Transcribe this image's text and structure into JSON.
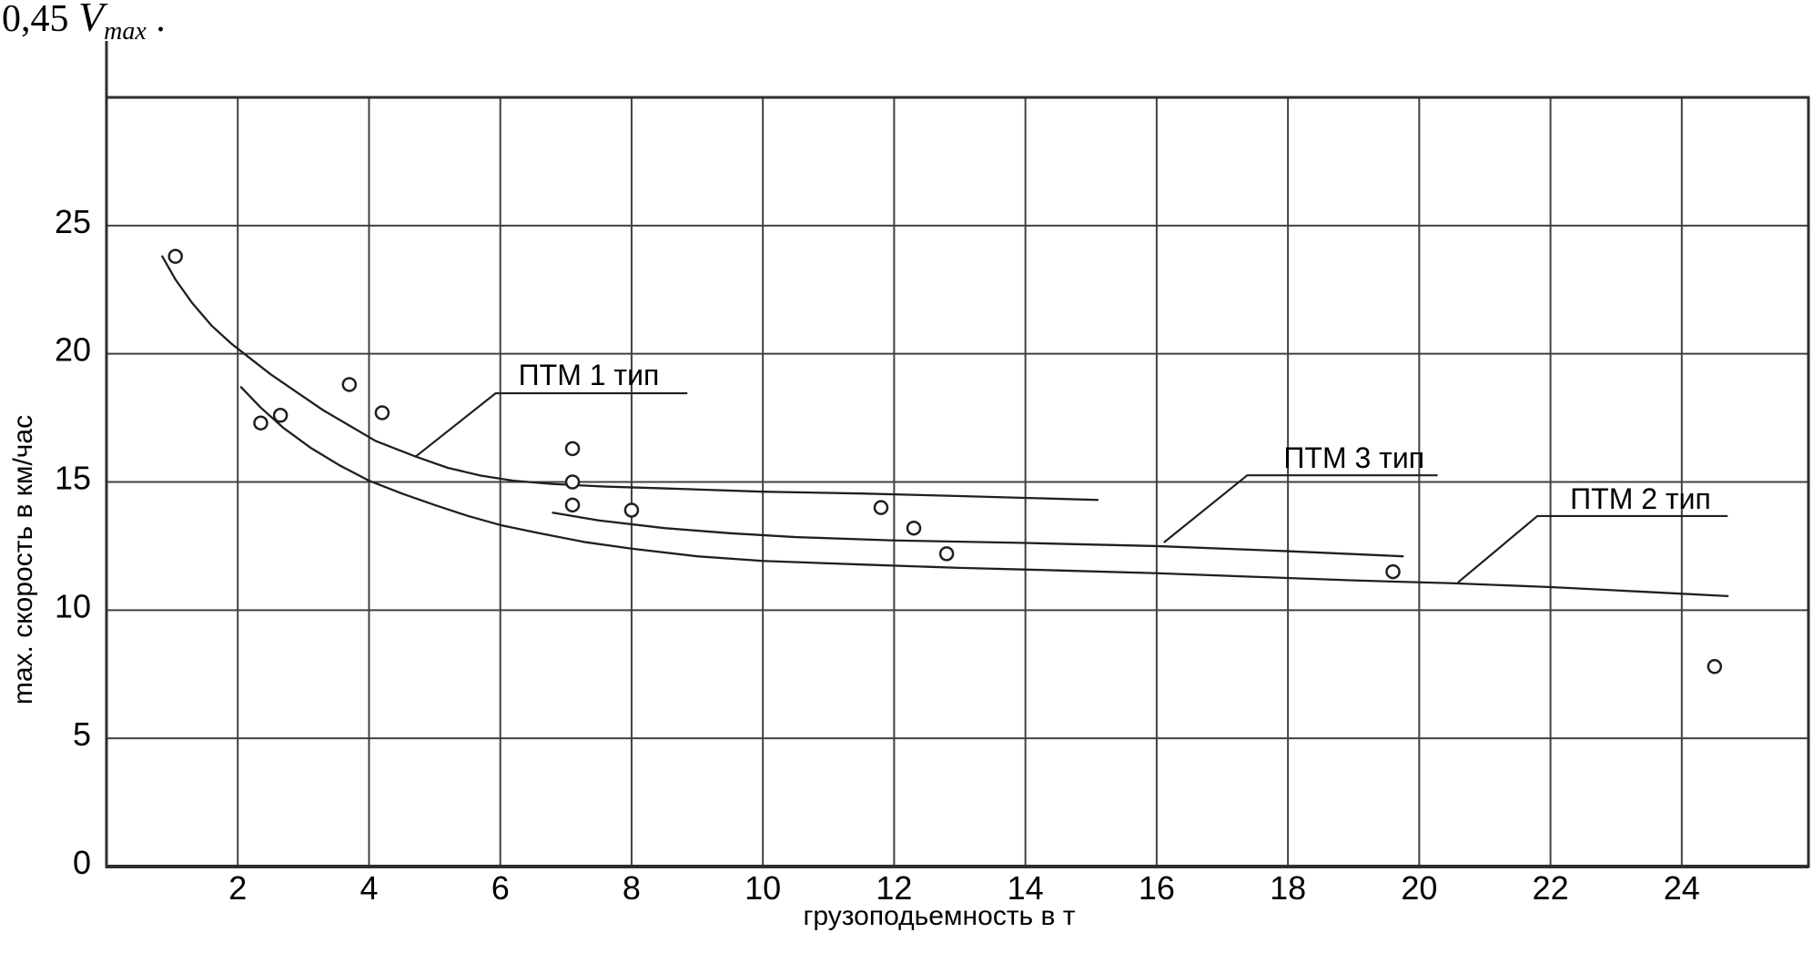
{
  "formula": {
    "prefix": "0,45 ",
    "variable": "V",
    "subscript": "max",
    "suffix": " ."
  },
  "colors": {
    "background": "#ffffff",
    "grid": "#404040",
    "axis": "#2e2e2e",
    "curve": "#1f1f1f",
    "marker": "#1f1f1f",
    "text": "#000000"
  },
  "chart_data": {
    "type": "line",
    "title": "",
    "xlabel": "грузоподьемность в т",
    "ylabel": "max. скорость в км/час",
    "xlim": [
      0,
      25.93
    ],
    "ylim": [
      0,
      30
    ],
    "x_ticks": [
      2,
      4,
      6,
      8,
      10,
      12,
      14,
      16,
      18,
      20,
      22,
      24
    ],
    "y_ticks": [
      0,
      5,
      10,
      15,
      20,
      25
    ],
    "grid": true,
    "legend_position": "inline-annotations",
    "series": [
      {
        "name": "ПТМ 1 тип",
        "points": [
          [
            0.85,
            23.8
          ],
          [
            1.05,
            22.9
          ],
          [
            1.3,
            22.0
          ],
          [
            1.6,
            21.1
          ],
          [
            1.9,
            20.4
          ],
          [
            2.1,
            20.0
          ],
          [
            2.5,
            19.2
          ],
          [
            2.9,
            18.5
          ],
          [
            3.3,
            17.8
          ],
          [
            3.7,
            17.2
          ],
          [
            4.1,
            16.6
          ],
          [
            4.7,
            16.0
          ],
          [
            5.2,
            15.55
          ],
          [
            5.7,
            15.25
          ],
          [
            6.2,
            15.05
          ],
          [
            6.8,
            14.92
          ],
          [
            7.6,
            14.82
          ],
          [
            8.5,
            14.75
          ],
          [
            10.0,
            14.62
          ],
          [
            11.5,
            14.55
          ],
          [
            13.0,
            14.45
          ],
          [
            15.1,
            14.3
          ]
        ]
      },
      {
        "name": "ПТМ 2 тип",
        "points": [
          [
            2.05,
            18.7
          ],
          [
            2.35,
            17.9
          ],
          [
            2.7,
            17.1
          ],
          [
            3.1,
            16.35
          ],
          [
            3.55,
            15.65
          ],
          [
            4.0,
            15.05
          ],
          [
            4.5,
            14.55
          ],
          [
            5.0,
            14.1
          ],
          [
            5.5,
            13.68
          ],
          [
            6.0,
            13.32
          ],
          [
            6.6,
            13.0
          ],
          [
            7.3,
            12.65
          ],
          [
            8.0,
            12.4
          ],
          [
            9.0,
            12.1
          ],
          [
            10.0,
            11.92
          ],
          [
            11.5,
            11.78
          ],
          [
            13.0,
            11.65
          ],
          [
            14.5,
            11.55
          ],
          [
            16.0,
            11.44
          ],
          [
            17.5,
            11.3
          ],
          [
            19.0,
            11.16
          ],
          [
            20.5,
            11.05
          ],
          [
            22.0,
            10.9
          ],
          [
            23.4,
            10.72
          ],
          [
            24.7,
            10.55
          ]
        ]
      },
      {
        "name": "ПТМ 3 тип",
        "points": [
          [
            6.8,
            13.8
          ],
          [
            7.5,
            13.5
          ],
          [
            8.5,
            13.2
          ],
          [
            9.5,
            13.0
          ],
          [
            10.5,
            12.85
          ],
          [
            12.0,
            12.72
          ],
          [
            14.0,
            12.62
          ],
          [
            16.0,
            12.5
          ],
          [
            18.0,
            12.3
          ],
          [
            19.75,
            12.1
          ]
        ]
      }
    ],
    "scatter_points": [
      [
        1.05,
        23.8
      ],
      [
        2.35,
        17.3
      ],
      [
        2.65,
        17.6
      ],
      [
        3.7,
        18.8
      ],
      [
        4.2,
        17.7
      ],
      [
        7.1,
        16.3
      ],
      [
        7.1,
        15.0
      ],
      [
        7.1,
        14.1
      ],
      [
        8.0,
        13.9
      ],
      [
        11.8,
        14.0
      ],
      [
        12.3,
        13.2
      ],
      [
        12.8,
        12.2
      ],
      [
        19.6,
        11.5
      ],
      [
        24.5,
        7.8
      ]
    ],
    "annotations": [
      {
        "label": "ПТМ 1 тип",
        "tip": [
          4.7,
          15.97
        ],
        "elbow": [
          5.93,
          18.46
        ],
        "underline_end_x": 8.85,
        "text_offset": [
          25,
          -9
        ]
      },
      {
        "label": "ПТМ 3 тип",
        "tip": [
          16.11,
          12.64
        ],
        "elbow": [
          17.38,
          15.26
        ],
        "underline_end_x": 20.28,
        "text_offset": [
          40,
          -8
        ]
      },
      {
        "label": "ПТМ 2 тип",
        "tip": [
          20.59,
          11.08
        ],
        "elbow": [
          21.8,
          13.67
        ],
        "underline_end_x": 24.7,
        "text_offset": [
          36,
          -8
        ]
      }
    ]
  }
}
